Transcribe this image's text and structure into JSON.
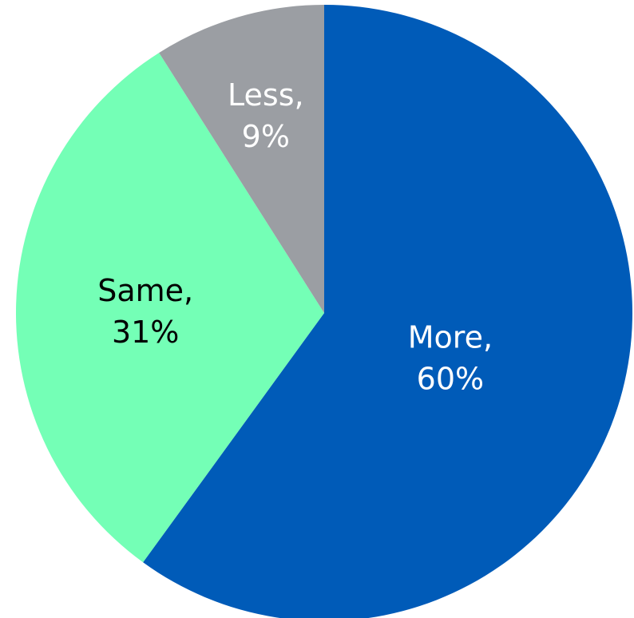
{
  "chart_data": {
    "type": "pie",
    "categories": [
      "More",
      "Same",
      "Less"
    ],
    "values": [
      60,
      31,
      9
    ],
    "colors": [
      "#005BB8",
      "#74FFB6",
      "#9B9EA3"
    ],
    "label_colors": [
      "#FFFFFF",
      "#000000",
      "#FFFFFF"
    ],
    "data_labels": [
      {
        "line1": "More,",
        "line2": "60%"
      },
      {
        "line1": "Same,",
        "line2": "31%"
      },
      {
        "line1": "Less,",
        "line2": "9%"
      }
    ],
    "start_angle_deg": 270,
    "direction": "clockwise"
  }
}
